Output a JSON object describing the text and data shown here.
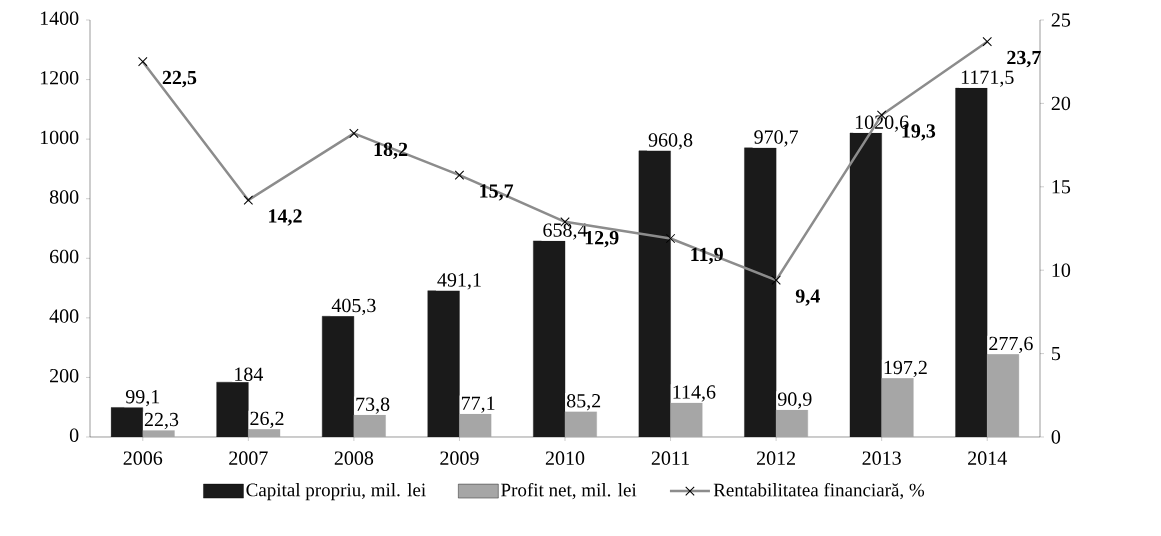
{
  "chart_data": {
    "type": "bar",
    "categories": [
      "2006",
      "2007",
      "2008",
      "2009",
      "2010",
      "2011",
      "2012",
      "2013",
      "2014"
    ],
    "series": [
      {
        "name": "Capital propriu, mil. lei",
        "color": "#1a1a1a",
        "values": [
          99.1,
          184,
          405.3,
          491.1,
          658.4,
          960.8,
          970.7,
          1020.6,
          1171.5
        ],
        "value_labels": [
          "99,1",
          "184",
          "405,3",
          "491,1",
          "658,4",
          "960,8",
          "970,7",
          "1020,6",
          "1171,5"
        ]
      },
      {
        "name": "Profit net, mil. lei",
        "color": "#a6a6a6",
        "values": [
          22.3,
          26.2,
          73.8,
          77.1,
          85.2,
          114.6,
          90.9,
          197.2,
          277.6
        ],
        "value_labels": [
          "22,3",
          "26,2",
          "73,8",
          "77,1",
          "85,2",
          "114,6",
          "90,9",
          "197,2",
          "277,6"
        ]
      },
      {
        "name": "Rentabilitatea financiară, %",
        "type": "line",
        "axis": "y2",
        "color": "#8c8c8c",
        "marker": "cross",
        "values": [
          22.5,
          14.2,
          18.2,
          15.7,
          12.9,
          11.9,
          9.4,
          19.3,
          23.7
        ],
        "value_labels": [
          "22,5",
          "14,2",
          "18,2",
          "15,7",
          "12,9",
          "11,9",
          "9,4",
          "19,3",
          "23,7"
        ]
      }
    ],
    "ylim": [
      0,
      1400
    ],
    "yticks": [
      0,
      200,
      400,
      600,
      800,
      1000,
      1200,
      1400
    ],
    "y2lim": [
      0,
      25
    ],
    "y2ticks": [
      0,
      5,
      10,
      15,
      20,
      25
    ],
    "legend": "bottom"
  }
}
